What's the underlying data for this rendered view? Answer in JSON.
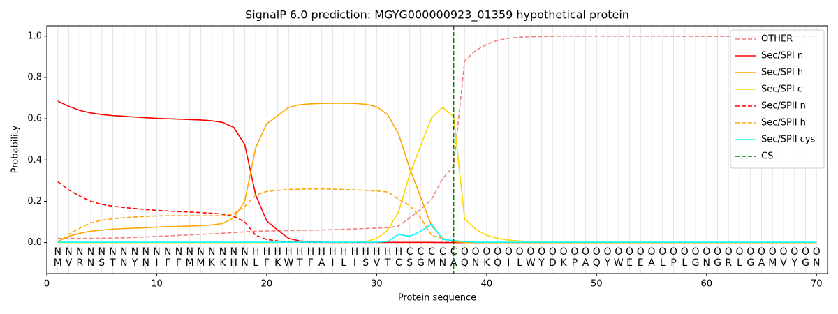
{
  "chart_data": {
    "type": "line",
    "title": "SignalP 6.0 prediction: MGYG000000923_01359 hypothetical protein",
    "x_label": "Protein sequence",
    "y_label": "Probability",
    "xlim": [
      0,
      71
    ],
    "ylim": [
      -0.15,
      1.05
    ],
    "xticks": [
      0,
      10,
      20,
      30,
      40,
      50,
      60,
      70
    ],
    "yticks": [
      {
        "value": 0,
        "label": "0.0"
      },
      {
        "value": 0.2,
        "label": "0.2"
      },
      {
        "value": 0.4,
        "label": "0.4"
      },
      {
        "value": 0.6,
        "label": "0.6"
      },
      {
        "value": 0.8,
        "label": "0.8"
      },
      {
        "value": 1,
        "label": "1.0"
      }
    ],
    "grid": true,
    "legend": "upper right",
    "x": [
      1,
      2,
      3,
      4,
      5,
      6,
      7,
      8,
      9,
      10,
      11,
      12,
      13,
      14,
      15,
      16,
      17,
      18,
      19,
      20,
      21,
      22,
      23,
      24,
      25,
      26,
      27,
      28,
      29,
      30,
      31,
      32,
      33,
      34,
      35,
      36,
      37,
      38,
      39,
      40,
      41,
      42,
      43,
      44,
      45,
      46,
      47,
      48,
      49,
      50,
      51,
      52,
      53,
      54,
      55,
      56,
      57,
      58,
      59,
      60,
      61,
      62,
      63,
      64,
      65,
      66,
      67,
      68,
      69,
      70
    ],
    "residues": [
      "M",
      "V",
      "R",
      "N",
      "S",
      "T",
      "N",
      "Y",
      "N",
      "I",
      "F",
      "F",
      "M",
      "M",
      "K",
      "K",
      "H",
      "N",
      "L",
      "F",
      "K",
      "W",
      "T",
      "F",
      "A",
      "I",
      "L",
      "I",
      "S",
      "V",
      "T",
      "C",
      "S",
      "G",
      "M",
      "N",
      "A",
      "Q",
      "N",
      "K",
      "Q",
      "I",
      "L",
      "W",
      "Y",
      "D",
      "K",
      "P",
      "A",
      "Q",
      "Y",
      "W",
      "E",
      "E",
      "A",
      "L",
      "P",
      "L",
      "G",
      "N",
      "G",
      "R",
      "L",
      "G",
      "A",
      "M",
      "V",
      "Y",
      "G",
      "N"
    ],
    "labels": [
      "N",
      "N",
      "N",
      "N",
      "N",
      "N",
      "N",
      "N",
      "N",
      "N",
      "N",
      "N",
      "N",
      "N",
      "N",
      "N",
      "N",
      "N",
      "H",
      "H",
      "H",
      "H",
      "H",
      "H",
      "H",
      "H",
      "H",
      "H",
      "H",
      "H",
      "H",
      "H",
      "C",
      "C",
      "C",
      "C",
      "C",
      "O",
      "O",
      "O",
      "O",
      "O",
      "O",
      "O",
      "O",
      "O",
      "O",
      "O",
      "O",
      "O",
      "O",
      "O",
      "O",
      "O",
      "O",
      "O",
      "O",
      "O",
      "O",
      "O",
      "O",
      "O",
      "O",
      "O",
      "O",
      "O",
      "O",
      "O",
      "O",
      "O"
    ],
    "label_colors": {
      "N": "#ff0000",
      "H": "#ffa500",
      "C": "#ffd700",
      "O": "#808080"
    },
    "series": [
      {
        "name": "OTHER",
        "color": "#f08080",
        "dashed": true,
        "values": [
          0.02,
          0.02,
          0.02,
          0.02,
          0.021,
          0.022,
          0.023,
          0.025,
          0.027,
          0.03,
          0.032,
          0.035,
          0.037,
          0.04,
          0.042,
          0.045,
          0.048,
          0.052,
          0.055,
          0.056,
          0.057,
          0.058,
          0.059,
          0.06,
          0.061,
          0.062,
          0.064,
          0.066,
          0.068,
          0.07,
          0.072,
          0.08,
          0.12,
          0.16,
          0.21,
          0.31,
          0.37,
          0.88,
          0.93,
          0.96,
          0.98,
          0.99,
          0.995,
          0.997,
          0.998,
          0.999,
          1.0,
          1.0,
          1.0,
          1.0,
          1.0,
          1.0,
          1.0,
          1.0,
          1.0,
          1.0,
          1.0,
          0.999,
          0.999,
          0.999,
          0.999,
          0.999,
          0.999,
          0.999,
          0.998,
          0.998,
          0.998,
          0.998,
          0.998,
          0.998
        ]
      },
      {
        "name": "Sec/SPI n",
        "color": "#ff0000",
        "dashed": false,
        "values": [
          0.685,
          0.66,
          0.64,
          0.628,
          0.62,
          0.615,
          0.612,
          0.608,
          0.605,
          0.602,
          0.6,
          0.598,
          0.596,
          0.594,
          0.59,
          0.582,
          0.558,
          0.475,
          0.23,
          0.105,
          0.06,
          0.02,
          0.008,
          0.004,
          0.002,
          0.001,
          0.001,
          0.001,
          0.001,
          0.001,
          0.001,
          0.001,
          0.001,
          0.001,
          0.001,
          0,
          0,
          0,
          0,
          0,
          0,
          0,
          0,
          0,
          0,
          0,
          0,
          0,
          0,
          0,
          0,
          0,
          0,
          0,
          0,
          0,
          0,
          0,
          0,
          0,
          0,
          0,
          0,
          0,
          0,
          0,
          0,
          0,
          0,
          0
        ]
      },
      {
        "name": "Sec/SPI h",
        "color": "#ffa500",
        "dashed": false,
        "values": [
          0.005,
          0.03,
          0.045,
          0.055,
          0.06,
          0.065,
          0.068,
          0.07,
          0.072,
          0.075,
          0.077,
          0.078,
          0.08,
          0.082,
          0.085,
          0.092,
          0.12,
          0.2,
          0.46,
          0.575,
          0.615,
          0.655,
          0.668,
          0.672,
          0.674,
          0.675,
          0.675,
          0.674,
          0.67,
          0.658,
          0.62,
          0.525,
          0.36,
          0.22,
          0.08,
          0.02,
          0.005,
          0,
          0,
          0,
          0,
          0,
          0,
          0,
          0,
          0,
          0,
          0,
          0,
          0,
          0,
          0,
          0,
          0,
          0,
          0,
          0,
          0,
          0,
          0,
          0,
          0,
          0,
          0,
          0,
          0,
          0,
          0,
          0,
          0
        ]
      },
      {
        "name": "Sec/SPI c",
        "color": "#ffd700",
        "dashed": false,
        "values": [
          0,
          0,
          0,
          0,
          0,
          0,
          0,
          0,
          0,
          0,
          0,
          0,
          0,
          0,
          0,
          0,
          0,
          0,
          0,
          0,
          0.001,
          0.001,
          0.001,
          0.001,
          0.001,
          0.001,
          0.001,
          0.001,
          0.005,
          0.02,
          0.06,
          0.15,
          0.33,
          0.47,
          0.605,
          0.655,
          0.61,
          0.115,
          0.065,
          0.035,
          0.02,
          0.012,
          0.008,
          0.005,
          0.003,
          0.002,
          0.002,
          0.002,
          0.002,
          0.002,
          0.002,
          0.002,
          0.002,
          0.002,
          0.002,
          0.001,
          0.001,
          0.001,
          0.001,
          0.001,
          0.001,
          0.001,
          0.001,
          0.001,
          0.001,
          0.001,
          0.001,
          0.001,
          0.001,
          0.001
        ]
      },
      {
        "name": "Sec/SPII n",
        "color": "#ff0000",
        "dashed": true,
        "values": [
          0.295,
          0.255,
          0.225,
          0.2,
          0.185,
          0.176,
          0.17,
          0.165,
          0.16,
          0.156,
          0.153,
          0.15,
          0.148,
          0.145,
          0.142,
          0.138,
          0.128,
          0.1,
          0.035,
          0.015,
          0.008,
          0.004,
          0.002,
          0.001,
          0.001,
          0.001,
          0.001,
          0.001,
          0.001,
          0.001,
          0.001,
          0.001,
          0.001,
          0.001,
          0.001,
          0.001,
          0.001,
          0.001,
          0.001,
          0.001,
          0.001,
          0.001,
          0.001,
          0.001,
          0.001,
          0.001,
          0.001,
          0.001,
          0.001,
          0.001,
          0.001,
          0.001,
          0.001,
          0.001,
          0.001,
          0.001,
          0.001,
          0.001,
          0.001,
          0.001,
          0.001,
          0.001,
          0.001,
          0.001,
          0.001,
          0.001,
          0.001,
          0.001,
          0.001,
          0.001
        ]
      },
      {
        "name": "Sec/SPII h",
        "color": "#ffa500",
        "dashed": true,
        "values": [
          0.0,
          0.04,
          0.07,
          0.095,
          0.108,
          0.115,
          0.12,
          0.124,
          0.127,
          0.129,
          0.13,
          0.13,
          0.13,
          0.13,
          0.13,
          0.13,
          0.14,
          0.175,
          0.23,
          0.248,
          0.253,
          0.257,
          0.259,
          0.26,
          0.26,
          0.259,
          0.257,
          0.255,
          0.253,
          0.25,
          0.245,
          0.21,
          0.18,
          0.12,
          0.035,
          0.02,
          0.005,
          0,
          0,
          0,
          0,
          0,
          0,
          0,
          0,
          0,
          0,
          0,
          0,
          0,
          0,
          0,
          0,
          0,
          0,
          0,
          0,
          0,
          0,
          0,
          0,
          0,
          0,
          0,
          0,
          0,
          0,
          0,
          0,
          0
        ]
      },
      {
        "name": "Sec/SPII cys",
        "color": "#00ffff",
        "dashed": false,
        "values": [
          0.002,
          0.002,
          0.002,
          0.002,
          0.002,
          0.002,
          0.002,
          0.002,
          0.002,
          0.002,
          0.002,
          0.002,
          0.002,
          0.002,
          0.002,
          0.002,
          0.002,
          0.002,
          0.002,
          0.002,
          0.002,
          0.002,
          0.002,
          0.002,
          0.002,
          0.002,
          0.002,
          0.002,
          0.002,
          0.002,
          0.005,
          0.04,
          0.03,
          0.055,
          0.09,
          0.015,
          0.01,
          0.005,
          0.002,
          0.002,
          0.002,
          0.002,
          0.002,
          0.002,
          0.002,
          0.002,
          0.002,
          0.002,
          0.002,
          0.002,
          0.002,
          0.002,
          0.002,
          0.002,
          0.002,
          0.002,
          0.002,
          0.002,
          0.002,
          0.002,
          0.002,
          0.002,
          0.002,
          0.002,
          0.002,
          0.002,
          0.002,
          0.002,
          0.002,
          0.002
        ]
      }
    ],
    "cleavage_site": {
      "name": "CS",
      "value": 37,
      "color": "#008000"
    }
  }
}
